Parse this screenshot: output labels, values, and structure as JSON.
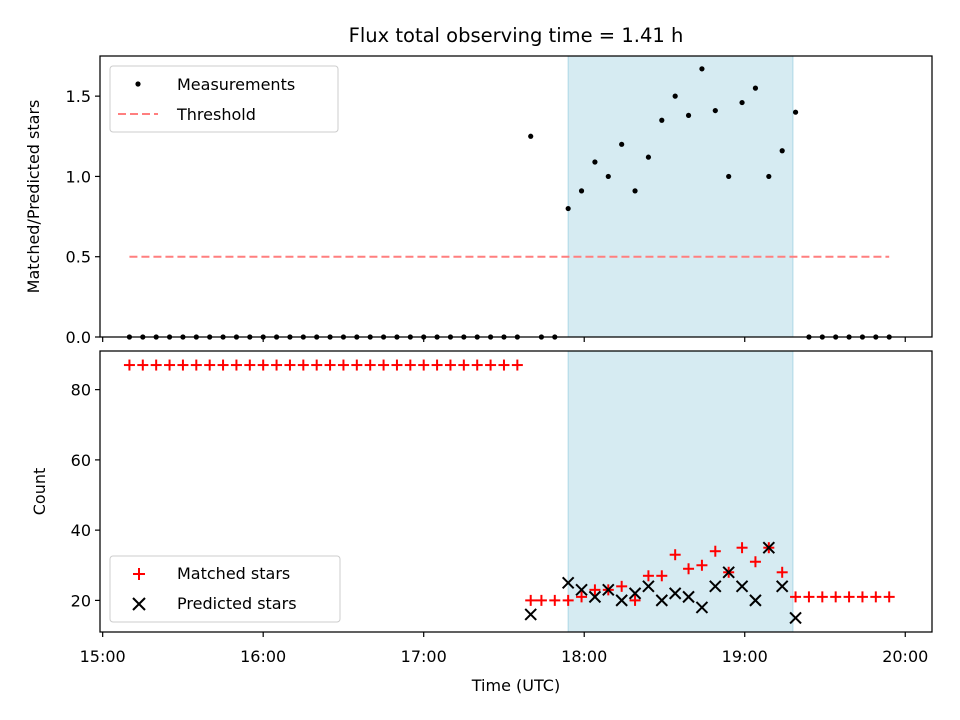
{
  "chart_data": [
    {
      "type": "scatter",
      "title": "Flux total observing time = 1.41 h",
      "ylabel": "Matched/Predicted stars",
      "xlim": [
        "14:59",
        "20:10"
      ],
      "ylim": [
        0,
        1.75
      ],
      "yticks": [
        0.0,
        0.5,
        1.0,
        1.5
      ],
      "ytick_labels": [
        "0.0",
        "0.5",
        "1.0",
        "1.5"
      ],
      "highlight_span": {
        "start": "17:54",
        "end": "19:18",
        "color": "#add8e6"
      },
      "series": [
        {
          "name": "Measurements",
          "marker": "dot",
          "color": "#000000",
          "x": [
            "15:10",
            "15:15",
            "15:20",
            "15:25",
            "15:30",
            "15:35",
            "15:40",
            "15:45",
            "15:50",
            "15:55",
            "16:00",
            "16:05",
            "16:10",
            "16:15",
            "16:20",
            "16:25",
            "16:30",
            "16:35",
            "16:40",
            "16:45",
            "16:50",
            "16:55",
            "17:00",
            "17:05",
            "17:10",
            "17:15",
            "17:20",
            "17:25",
            "17:30",
            "17:35",
            "17:40",
            "17:44",
            "17:49",
            "17:54",
            "17:59",
            "18:04",
            "18:09",
            "18:14",
            "18:19",
            "18:24",
            "18:29",
            "18:34",
            "18:39",
            "18:44",
            "18:49",
            "18:54",
            "18:59",
            "19:04",
            "19:09",
            "19:14",
            "19:19",
            "19:24",
            "19:29",
            "19:34",
            "19:39",
            "19:44",
            "19:49",
            "19:54"
          ],
          "y": [
            0,
            0,
            0,
            0,
            0,
            0,
            0,
            0,
            0,
            0,
            0,
            0,
            0,
            0,
            0,
            0,
            0,
            0,
            0,
            0,
            0,
            0,
            0,
            0,
            0,
            0,
            0,
            0,
            0,
            0,
            1.25,
            0,
            0,
            0.8,
            0.91,
            1.09,
            1.0,
            1.2,
            0.91,
            1.12,
            1.35,
            1.5,
            1.38,
            1.67,
            1.41,
            1.0,
            1.46,
            1.55,
            1.0,
            1.16,
            1.4,
            0,
            0,
            0,
            0,
            0,
            0,
            0
          ]
        },
        {
          "name": "Threshold",
          "marker": "dashed-line",
          "color": "#ff7f7f",
          "x": [
            "15:10",
            "19:54"
          ],
          "y": [
            0.5,
            0.5
          ]
        }
      ],
      "legend": {
        "position": "top-left",
        "entries": [
          "Measurements",
          "Threshold"
        ]
      }
    },
    {
      "type": "scatter",
      "xlabel": "Time (UTC)",
      "ylabel": "Count",
      "xlim": [
        "14:59",
        "20:10"
      ],
      "ylim": [
        11,
        91
      ],
      "yticks": [
        20,
        40,
        60,
        80
      ],
      "xticks": [
        "15:00",
        "16:00",
        "17:00",
        "18:00",
        "19:00",
        "20:00"
      ],
      "highlight_span": {
        "start": "17:54",
        "end": "19:18",
        "color": "#add8e6"
      },
      "series": [
        {
          "name": "Matched stars",
          "marker": "plus",
          "color": "#ff0000",
          "x": [
            "15:10",
            "15:15",
            "15:20",
            "15:25",
            "15:30",
            "15:35",
            "15:40",
            "15:45",
            "15:50",
            "15:55",
            "16:00",
            "16:05",
            "16:10",
            "16:15",
            "16:20",
            "16:25",
            "16:30",
            "16:35",
            "16:40",
            "16:45",
            "16:50",
            "16:55",
            "17:00",
            "17:05",
            "17:10",
            "17:15",
            "17:20",
            "17:25",
            "17:30",
            "17:35",
            "17:40",
            "17:44",
            "17:49",
            "17:54",
            "17:59",
            "18:04",
            "18:09",
            "18:14",
            "18:19",
            "18:24",
            "18:29",
            "18:34",
            "18:39",
            "18:44",
            "18:49",
            "18:54",
            "18:59",
            "19:04",
            "19:09",
            "19:14",
            "19:19",
            "19:24",
            "19:29",
            "19:34",
            "19:39",
            "19:44",
            "19:49",
            "19:54"
          ],
          "y": [
            87,
            87,
            87,
            87,
            87,
            87,
            87,
            87,
            87,
            87,
            87,
            87,
            87,
            87,
            87,
            87,
            87,
            87,
            87,
            87,
            87,
            87,
            87,
            87,
            87,
            87,
            87,
            87,
            87,
            87,
            20,
            20,
            20,
            20,
            21,
            23,
            23,
            24,
            20,
            27,
            27,
            33,
            29,
            30,
            34,
            28,
            35,
            31,
            35,
            28,
            21,
            21,
            21,
            21,
            21,
            21,
            21,
            21
          ]
        },
        {
          "name": "Predicted stars",
          "marker": "x",
          "color": "#000000",
          "x": [
            "17:40",
            "17:54",
            "17:59",
            "18:04",
            "18:09",
            "18:14",
            "18:19",
            "18:24",
            "18:29",
            "18:34",
            "18:39",
            "18:44",
            "18:49",
            "18:54",
            "18:59",
            "19:04",
            "19:09",
            "19:14",
            "19:19"
          ],
          "y": [
            16,
            25,
            23,
            21,
            23,
            20,
            22,
            24,
            20,
            22,
            21,
            18,
            24,
            28,
            24,
            20,
            35,
            24,
            15
          ]
        }
      ],
      "legend": {
        "position": "bottom-left",
        "entries": [
          "Matched stars",
          "Predicted stars"
        ]
      }
    }
  ]
}
